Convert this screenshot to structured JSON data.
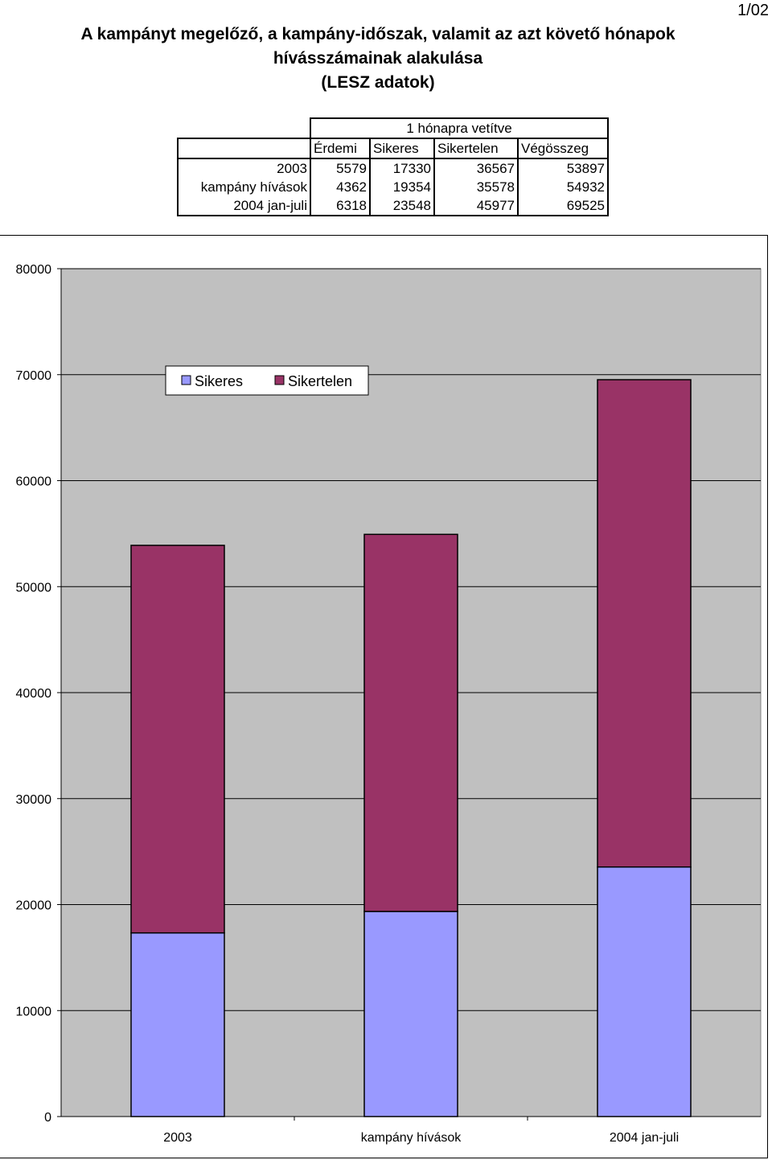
{
  "page_number": "1/02",
  "title_lines": [
    "A kampányt megelőző, a kampány-időszak, valamit az azt követő hónapok",
    "hívásszámainak alakulása",
    "(LESZ adatok)"
  ],
  "table": {
    "group_header": "1 hónapra vetítve",
    "columns": [
      "Érdemi",
      "Sikeres",
      "Sikertelen",
      "Végösszeg"
    ],
    "rows": [
      {
        "label": "2003",
        "values": [
          "5579",
          "17330",
          "36567",
          "53897"
        ]
      },
      {
        "label": "kampány hívások",
        "values": [
          "4362",
          "19354",
          "35578",
          "54932"
        ]
      },
      {
        "label": "2004 jan-juli",
        "values": [
          "6318",
          "23548",
          "45977",
          "69525"
        ]
      }
    ]
  },
  "colors": {
    "plot_bg": "#c0c0c0",
    "sikeres": "#9999ff",
    "sikertelen": "#993366",
    "grid": "#000000"
  },
  "chart_data": {
    "type": "bar",
    "stacked": true,
    "categories": [
      "2003",
      "kampány hívások",
      "2004 jan-juli"
    ],
    "series": [
      {
        "name": "Sikeres",
        "values": [
          17330,
          19354,
          23548
        ]
      },
      {
        "name": "Sikertelen",
        "values": [
          36567,
          35578,
          45977
        ]
      }
    ],
    "ylim": [
      0,
      80000
    ],
    "yticks": [
      0,
      10000,
      20000,
      30000,
      40000,
      50000,
      60000,
      70000,
      80000
    ],
    "grid": true,
    "legend_placement": "top-left"
  }
}
